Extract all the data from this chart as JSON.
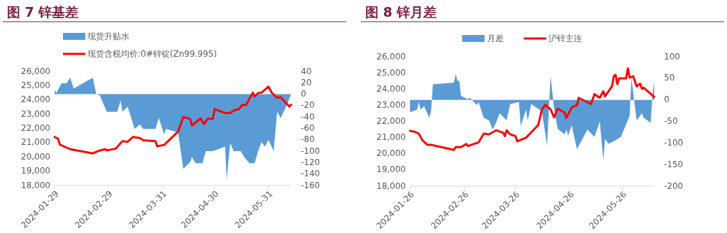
{
  "chart_data": [
    {
      "type": "area",
      "title": "图 7  锌基差",
      "legend": "top",
      "xlim": [
        "2024-01-29",
        "2024-06-13"
      ],
      "xticks": [
        "2024-01-29",
        "2024-02-29",
        "2024-03-31",
        "2024-04-30",
        "2024-05-31"
      ],
      "ylim": [
        18000,
        26000
      ],
      "yticks": [
        {
          "value": 18000,
          "label": "18,000"
        },
        {
          "value": 19000,
          "label": "19,000"
        },
        {
          "value": 20000,
          "label": "20,000"
        },
        {
          "value": 21000,
          "label": "21,000"
        },
        {
          "value": 22000,
          "label": "22,000"
        },
        {
          "value": 23000,
          "label": "23,000"
        },
        {
          "value": 24000,
          "label": "24,000"
        },
        {
          "value": 25000,
          "label": "25,000"
        },
        {
          "value": 26000,
          "label": "26,000"
        }
      ],
      "y2lim": [
        -160,
        40
      ],
      "y2ticks": [
        -160,
        -140,
        -120,
        -100,
        -80,
        -60,
        -40,
        -20,
        0,
        20,
        40
      ],
      "series": [
        {
          "name": "现货升贴水",
          "axis": "y2",
          "color": "#5b9bd5",
          "x": [
            "2024-01-29",
            "2024-01-30",
            "2024-02-02",
            "2024-02-05",
            "2024-02-07",
            "2024-02-09",
            "2024-02-20",
            "2024-02-22",
            "2024-02-24",
            "2024-02-28",
            "2024-03-05",
            "2024-03-07",
            "2024-03-08",
            "2024-03-11",
            "2024-03-13",
            "2024-03-15",
            "2024-03-18",
            "2024-03-20",
            "2024-03-27",
            "2024-03-29",
            "2024-04-01",
            "2024-04-02",
            "2024-04-09",
            "2024-04-12",
            "2024-04-16",
            "2024-04-17",
            "2024-04-19",
            "2024-04-23",
            "2024-04-25",
            "2024-04-29",
            "2024-05-06",
            "2024-05-07",
            "2024-05-09",
            "2024-05-11",
            "2024-05-15",
            "2024-05-17",
            "2024-05-20",
            "2024-05-23",
            "2024-05-25",
            "2024-05-27",
            "2024-05-29",
            "2024-05-31",
            "2024-06-03",
            "2024-06-05",
            "2024-06-07",
            "2024-06-11",
            "2024-06-13"
          ],
          "values": [
            8,
            2,
            19,
            19,
            29,
            10,
            29,
            0,
            -2,
            -31,
            -31,
            -11,
            -31,
            -22,
            -41,
            -61,
            -53,
            -61,
            -61,
            -42,
            -71,
            -61,
            -67,
            -131,
            -119,
            -110,
            -121,
            -121,
            -100,
            -100,
            -92,
            -149,
            -86,
            -100,
            -100,
            -110,
            -121,
            -121,
            -100,
            -84,
            -92,
            -80,
            -100,
            -31,
            -42,
            -16,
            0
          ]
        },
        {
          "name": "现货含税均价:0#锌锭(Zn99.995)",
          "type": "line",
          "axis": "y",
          "color": "#ff0000",
          "x": [
            "2024-01-29",
            "2024-01-31",
            "2024-02-01",
            "2024-02-07",
            "2024-02-20",
            "2024-02-23",
            "2024-02-27",
            "2024-02-28",
            "2024-03-04",
            "2024-03-08",
            "2024-03-11",
            "2024-03-14",
            "2024-03-18",
            "2024-03-20",
            "2024-03-27",
            "2024-03-28",
            "2024-04-01",
            "2024-04-09",
            "2024-04-12",
            "2024-04-16",
            "2024-04-17",
            "2024-04-22",
            "2024-04-24",
            "2024-04-26",
            "2024-04-29",
            "2024-04-30",
            "2024-05-06",
            "2024-05-09",
            "2024-05-11",
            "2024-05-14",
            "2024-05-16",
            "2024-05-18",
            "2024-05-22",
            "2024-05-23",
            "2024-05-25",
            "2024-05-27",
            "2024-05-31",
            "2024-06-02",
            "2024-06-05",
            "2024-06-07",
            "2024-06-12",
            "2024-06-13"
          ],
          "values": [
            21400,
            21280,
            20870,
            20540,
            20250,
            20410,
            20540,
            20460,
            20570,
            21110,
            21060,
            21400,
            21330,
            21170,
            21110,
            20750,
            20840,
            21770,
            22800,
            22670,
            22210,
            22700,
            22310,
            22670,
            22670,
            23360,
            23080,
            23080,
            23250,
            23360,
            23660,
            23620,
            24510,
            24230,
            24480,
            24510,
            24930,
            24480,
            24150,
            24180,
            23530,
            23660
          ]
        }
      ]
    },
    {
      "type": "area",
      "title": "图 8  锌月差",
      "legend": "top",
      "xlim": [
        "2024-01-26",
        "2024-06-13"
      ],
      "xticks": [
        "2024-01-26",
        "2024-02-26",
        "2024-03-26",
        "2024-04-26",
        "2024-05-26"
      ],
      "ylim": [
        18000,
        26000
      ],
      "yticks": [
        {
          "value": 18000,
          "label": "18,000"
        },
        {
          "value": 19000,
          "label": "19,000"
        },
        {
          "value": 20000,
          "label": "20,000"
        },
        {
          "value": 21000,
          "label": "21,000"
        },
        {
          "value": 22000,
          "label": "22,000"
        },
        {
          "value": 23000,
          "label": "23,000"
        },
        {
          "value": 24000,
          "label": "24,000"
        },
        {
          "value": 25000,
          "label": "25,000"
        },
        {
          "value": 26000,
          "label": "26,000"
        }
      ],
      "y2lim": [
        -200,
        100
      ],
      "y2ticks": [
        -200,
        -150,
        -100,
        -50,
        0,
        50,
        100
      ],
      "series": [
        {
          "name": "月差",
          "axis": "y2",
          "color": "#5b9bd5",
          "x": [
            "2024-01-26",
            "2024-01-30",
            "2024-01-31",
            "2024-02-01",
            "2024-02-03",
            "2024-02-06",
            "2024-02-07",
            "2024-02-08",
            "2024-02-20",
            "2024-02-21",
            "2024-02-22",
            "2024-02-23",
            "2024-02-24",
            "2024-02-28",
            "2024-02-29",
            "2024-03-04",
            "2024-03-05",
            "2024-03-08",
            "2024-03-11",
            "2024-03-13",
            "2024-03-15",
            "2024-03-17",
            "2024-03-21",
            "2024-03-23",
            "2024-03-26",
            "2024-03-28",
            "2024-03-29",
            "2024-04-01",
            "2024-04-02",
            "2024-04-04",
            "2024-04-10",
            "2024-04-13",
            "2024-04-15",
            "2024-04-17",
            "2024-04-19",
            "2024-04-23",
            "2024-04-24",
            "2024-04-25",
            "2024-04-27",
            "2024-04-30",
            "2024-05-06",
            "2024-05-10",
            "2024-05-13",
            "2024-05-15",
            "2024-05-16",
            "2024-05-18",
            "2024-05-21",
            "2024-05-23",
            "2024-05-25",
            "2024-05-30",
            "2024-05-31",
            "2024-06-03",
            "2024-06-06",
            "2024-06-07",
            "2024-06-11",
            "2024-06-12",
            "2024-06-13"
          ],
          "values": [
            -29,
            -23,
            -5,
            -23,
            -15,
            -42,
            -26,
            36,
            40,
            60,
            44,
            44,
            9,
            1,
            5,
            -12,
            -5,
            -42,
            -48,
            -69,
            -53,
            -31,
            -48,
            -10,
            -7,
            -5,
            -61,
            -23,
            -48,
            -10,
            -26,
            -106,
            55,
            -21,
            -67,
            -80,
            -69,
            -83,
            -59,
            -114,
            -69,
            -86,
            -50,
            -140,
            -91,
            -102,
            -96,
            -91,
            -86,
            -37,
            50,
            -48,
            -31,
            -42,
            -53,
            12,
            42
          ]
        },
        {
          "name": "沪锌主连",
          "type": "line",
          "axis": "y",
          "color": "#ff0000",
          "x": [
            "2024-01-26",
            "2024-01-29",
            "2024-01-31",
            "2024-02-02",
            "2024-02-05",
            "2024-02-07",
            "2024-02-20",
            "2024-02-21",
            "2024-02-24",
            "2024-02-27",
            "2024-02-28",
            "2024-03-03",
            "2024-03-05",
            "2024-03-08",
            "2024-03-11",
            "2024-03-15",
            "2024-03-19",
            "2024-03-20",
            "2024-03-21",
            "2024-03-23",
            "2024-03-26",
            "2024-03-27",
            "2024-04-01",
            "2024-04-08",
            "2024-04-10",
            "2024-04-12",
            "2024-04-15",
            "2024-04-17",
            "2024-04-19",
            "2024-04-23",
            "2024-04-24",
            "2024-04-27",
            "2024-04-29",
            "2024-04-30",
            "2024-05-01",
            "2024-05-08",
            "2024-05-10",
            "2024-05-13",
            "2024-05-15",
            "2024-05-16",
            "2024-05-20",
            "2024-05-21",
            "2024-05-22",
            "2024-05-23",
            "2024-05-24",
            "2024-05-28",
            "2024-05-29",
            "2024-05-30",
            "2024-06-01",
            "2024-06-03",
            "2024-06-05",
            "2024-06-06",
            "2024-06-07",
            "2024-06-13"
          ],
          "values": [
            21420,
            21350,
            21240,
            20840,
            20550,
            20550,
            20240,
            20410,
            20410,
            20600,
            20480,
            20630,
            20700,
            21240,
            21200,
            21450,
            21300,
            21100,
            21450,
            21200,
            21100,
            20770,
            20990,
            21780,
            22710,
            23030,
            22740,
            22250,
            22790,
            22540,
            22210,
            22860,
            22970,
            23000,
            23460,
            23070,
            23690,
            23460,
            23870,
            23550,
            24180,
            24800,
            24880,
            24300,
            24660,
            24660,
            25280,
            24700,
            24800,
            24160,
            24330,
            24010,
            24080,
            23510
          ]
        }
      ]
    }
  ]
}
